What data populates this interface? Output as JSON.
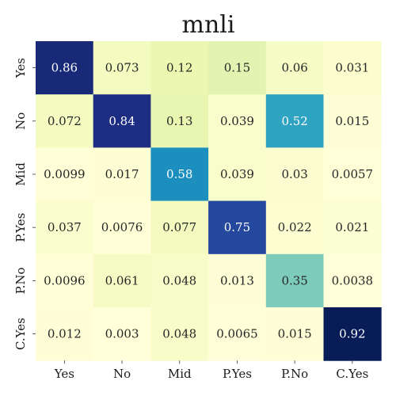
{
  "chart_data": {
    "type": "heatmap",
    "title": "mnli",
    "xlabel": "",
    "ylabel": "",
    "x_categories": [
      "Yes",
      "No",
      "Mid",
      "P.Yes",
      "P.No",
      "C.Yes"
    ],
    "y_categories": [
      "Yes",
      "No",
      "Mid",
      "P.Yes",
      "P.No",
      "C.Yes"
    ],
    "values": [
      [
        "0.86",
        "0.073",
        "0.12",
        "0.15",
        "0.06",
        "0.031"
      ],
      [
        "0.072",
        "0.84",
        "0.13",
        "0.039",
        "0.52",
        "0.015"
      ],
      [
        "0.0099",
        "0.017",
        "0.58",
        "0.039",
        "0.03",
        "0.0057"
      ],
      [
        "0.037",
        "0.0076",
        "0.077",
        "0.75",
        "0.022",
        "0.021"
      ],
      [
        "0.0096",
        "0.061",
        "0.048",
        "0.013",
        "0.35",
        "0.0038"
      ],
      [
        "0.012",
        "0.003",
        "0.048",
        "0.0065",
        "0.015",
        "0.92"
      ]
    ],
    "colormap": "YlGnBu",
    "colorbar": false,
    "grid": false
  }
}
